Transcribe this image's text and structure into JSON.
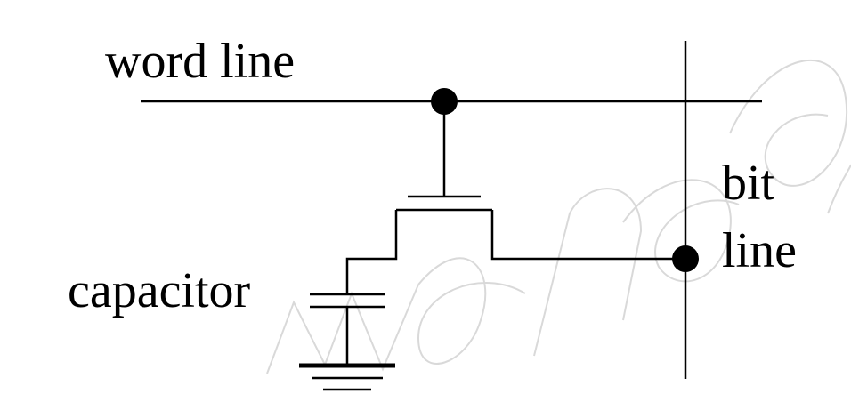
{
  "labels": {
    "word_line": "word line",
    "bit": "bit",
    "line": "line",
    "capacitor": "capacitor"
  },
  "colors": {
    "ink": "#000000",
    "watermark": "#d9d9d9",
    "background": "#ffffff"
  }
}
